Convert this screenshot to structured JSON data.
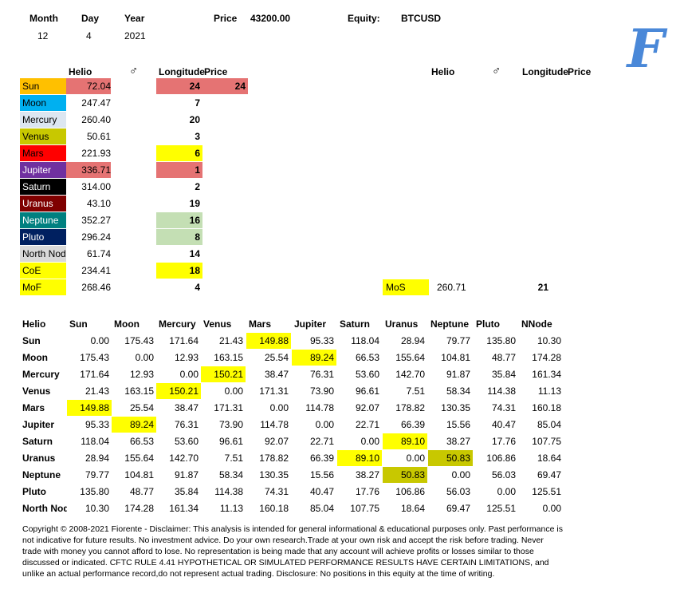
{
  "header": {
    "month_label": "Month",
    "day_label": "Day",
    "year_label": "Year",
    "month": "12",
    "day": "4",
    "year": "2021",
    "price_label": "Price",
    "price": "43200.00",
    "equity_label": "Equity:",
    "equity": "BTCUSD"
  },
  "logo": {
    "letter": "F",
    "color": "#4a88d8"
  },
  "left_table": {
    "col_helio": "Helio",
    "col_mars_symbol": "♂",
    "col_longitude": "Longitude",
    "col_price": "Price",
    "rows": [
      {
        "name": "Sun",
        "helio": "72.04",
        "lon": "24",
        "price": "24",
        "name_bg": "#ffc000",
        "helio_bg": "#e57373",
        "lon_bg": "#e57373",
        "price_bg": "#e57373",
        "name_color": "#000000"
      },
      {
        "name": "Moon",
        "helio": "247.47",
        "lon": "7",
        "price": "",
        "name_bg": "#00b0f0",
        "helio_bg": "",
        "lon_bg": "",
        "price_bg": "",
        "name_color": "#000000"
      },
      {
        "name": "Mercury",
        "helio": "260.40",
        "lon": "20",
        "price": "",
        "name_bg": "#dce6f1",
        "helio_bg": "",
        "lon_bg": "",
        "price_bg": "",
        "name_color": "#000000"
      },
      {
        "name": "Venus",
        "helio": "50.61",
        "lon": "3",
        "price": "",
        "name_bg": "#c8c800",
        "helio_bg": "",
        "lon_bg": "",
        "price_bg": "",
        "name_color": "#000000"
      },
      {
        "name": "Mars",
        "helio": "221.93",
        "lon": "6",
        "price": "",
        "name_bg": "#ff0000",
        "helio_bg": "",
        "lon_bg": "#ffff00",
        "price_bg": "",
        "name_color": "#000000"
      },
      {
        "name": "Jupiter",
        "helio": "336.71",
        "lon": "1",
        "price": "",
        "name_bg": "#7030a0",
        "helio_bg": "#e57373",
        "lon_bg": "#e57373",
        "price_bg": "",
        "name_color": "#ffffff"
      },
      {
        "name": "Saturn",
        "helio": "314.00",
        "lon": "2",
        "price": "",
        "name_bg": "#000000",
        "helio_bg": "",
        "lon_bg": "",
        "price_bg": "",
        "name_color": "#ffffff"
      },
      {
        "name": "Uranus",
        "helio": "43.10",
        "lon": "19",
        "price": "",
        "name_bg": "#7f0000",
        "helio_bg": "",
        "lon_bg": "",
        "price_bg": "",
        "name_color": "#ffffff"
      },
      {
        "name": "Neptune",
        "helio": "352.27",
        "lon": "16",
        "price": "",
        "name_bg": "#008080",
        "helio_bg": "",
        "lon_bg": "#c4dfb4",
        "price_bg": "",
        "name_color": "#ffffff"
      },
      {
        "name": "Pluto",
        "helio": "296.24",
        "lon": "8",
        "price": "",
        "name_bg": "#002060",
        "helio_bg": "",
        "lon_bg": "#c4dfb4",
        "price_bg": "",
        "name_color": "#ffffff"
      },
      {
        "name": "North Node",
        "helio": "61.74",
        "lon": "14",
        "price": "",
        "name_bg": "#d9d9d9",
        "helio_bg": "",
        "lon_bg": "",
        "price_bg": "",
        "name_color": "#000000"
      },
      {
        "name": "CoE",
        "helio": "234.41",
        "lon": "18",
        "price": "",
        "name_bg": "#ffff00",
        "helio_bg": "",
        "lon_bg": "#ffff00",
        "price_bg": "",
        "name_color": "#000000"
      },
      {
        "name": "MoF",
        "helio": "268.46",
        "lon": "4",
        "price": "",
        "name_bg": "#ffff00",
        "helio_bg": "",
        "lon_bg": "",
        "price_bg": "",
        "name_color": "#000000"
      }
    ]
  },
  "right_table": {
    "col_helio": "Helio",
    "col_mars_symbol": "♂",
    "col_longitude": "Longitude",
    "col_price": "Price",
    "mos_label": "MoS",
    "mos_helio": "260.71",
    "mos_lon": "21",
    "mos_bg": "#ffff00"
  },
  "matrix": {
    "corner": "Helio",
    "columns": [
      "Sun",
      "Moon",
      "Mercury",
      "Venus",
      "Mars",
      "Jupiter",
      "Saturn",
      "Uranus",
      "Neptune",
      "Pluto",
      "NNode"
    ],
    "rows": [
      {
        "name": "Sun",
        "values": [
          "0.00",
          "175.43",
          "171.64",
          "21.43",
          "149.88",
          "95.33",
          "118.04",
          "28.94",
          "79.77",
          "135.80",
          "10.30"
        ]
      },
      {
        "name": "Moon",
        "values": [
          "175.43",
          "0.00",
          "12.93",
          "163.15",
          "25.54",
          "89.24",
          "66.53",
          "155.64",
          "104.81",
          "48.77",
          "174.28"
        ]
      },
      {
        "name": "Mercury",
        "values": [
          "171.64",
          "12.93",
          "0.00",
          "150.21",
          "38.47",
          "76.31",
          "53.60",
          "142.70",
          "91.87",
          "35.84",
          "161.34"
        ]
      },
      {
        "name": "Venus",
        "values": [
          "21.43",
          "163.15",
          "150.21",
          "0.00",
          "171.31",
          "73.90",
          "96.61",
          "7.51",
          "58.34",
          "114.38",
          "11.13"
        ]
      },
      {
        "name": "Mars",
        "values": [
          "149.88",
          "25.54",
          "38.47",
          "171.31",
          "0.00",
          "114.78",
          "92.07",
          "178.82",
          "130.35",
          "74.31",
          "160.18"
        ]
      },
      {
        "name": "Jupiter",
        "values": [
          "95.33",
          "89.24",
          "76.31",
          "73.90",
          "114.78",
          "0.00",
          "22.71",
          "66.39",
          "15.56",
          "40.47",
          "85.04"
        ]
      },
      {
        "name": "Saturn",
        "values": [
          "118.04",
          "66.53",
          "53.60",
          "96.61",
          "92.07",
          "22.71",
          "0.00",
          "89.10",
          "38.27",
          "17.76",
          "107.75"
        ]
      },
      {
        "name": "Uranus",
        "values": [
          "28.94",
          "155.64",
          "142.70",
          "7.51",
          "178.82",
          "66.39",
          "89.10",
          "0.00",
          "50.83",
          "106.86",
          "18.64"
        ]
      },
      {
        "name": "Neptune",
        "values": [
          "79.77",
          "104.81",
          "91.87",
          "58.34",
          "130.35",
          "15.56",
          "38.27",
          "50.83",
          "0.00",
          "56.03",
          "69.47"
        ]
      },
      {
        "name": "Pluto",
        "values": [
          "135.80",
          "48.77",
          "35.84",
          "114.38",
          "74.31",
          "40.47",
          "17.76",
          "106.86",
          "56.03",
          "0.00",
          "125.51"
        ]
      },
      {
        "name": "North Node",
        "values": [
          "10.30",
          "174.28",
          "161.34",
          "11.13",
          "160.18",
          "85.04",
          "107.75",
          "18.64",
          "69.47",
          "125.51",
          "0.00"
        ]
      }
    ],
    "highlights": [
      {
        "row": 0,
        "col": 4,
        "color": "#ffff00"
      },
      {
        "row": 1,
        "col": 5,
        "color": "#ffff00"
      },
      {
        "row": 2,
        "col": 3,
        "color": "#ffff00"
      },
      {
        "row": 3,
        "col": 2,
        "color": "#ffff00"
      },
      {
        "row": 4,
        "col": 0,
        "color": "#ffff00"
      },
      {
        "row": 5,
        "col": 1,
        "color": "#ffff00"
      },
      {
        "row": 6,
        "col": 7,
        "color": "#ffff00"
      },
      {
        "row": 7,
        "col": 6,
        "color": "#ffff00"
      },
      {
        "row": 7,
        "col": 8,
        "color": "#c8c800"
      },
      {
        "row": 8,
        "col": 7,
        "color": "#c8c800"
      }
    ]
  },
  "disclaimer": "Copyright © 2008-2021 Fiorente -  Disclaimer: This analysis is intended for general informational & educational purposes only. Past performance is not indicative for future results. No investment advice. Do your own research.Trade at your own risk and accept the risk before trading. Never trade with money you cannot afford to lose. No representation is being made that any account will achieve profits or losses similar to those discussed or indicated. CFTC RULE 4.41 HYPOTHETICAL OR SIMULATED PERFORMANCE RESULTS HAVE CERTAIN LIMITATIONS, and unlike an actual performance record,do not represent actual trading. Disclosure: No positions in this equity at the time of writing."
}
